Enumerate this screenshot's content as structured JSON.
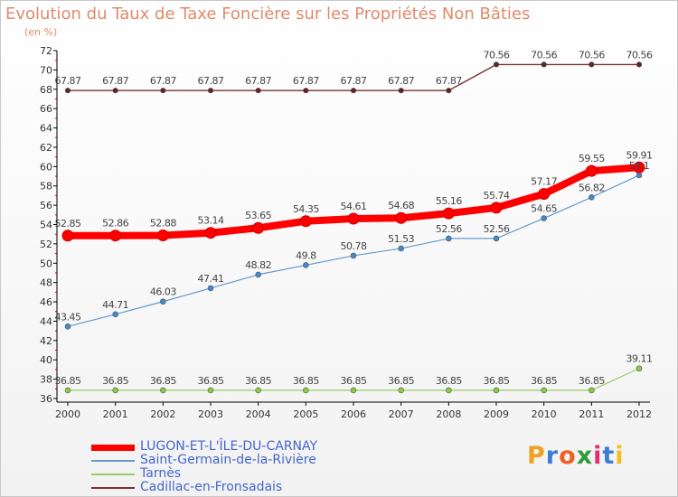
{
  "header": {
    "title": "Evolution du Taux de Taxe Foncière sur les Propriétés Non Bâties",
    "subtitle": "(en %)"
  },
  "brand": {
    "text": "Proxiti",
    "letter_colors": [
      "#f0a020",
      "#3a7dd8",
      "#f06020",
      "#2c9c3c",
      "#e03070",
      "#3a7dd8",
      "#f0c020"
    ]
  },
  "legend": {
    "items": [
      {
        "label": "LUGON-ET-L'ÎLE-DU-CARNAY",
        "color": "#ff0000"
      },
      {
        "label": "Saint-Germain-de-la-Rivière",
        "color": "#6699cc"
      },
      {
        "label": "Tarnès",
        "color": "#99cc66"
      },
      {
        "label": "Cadillac-en-Fronsadais",
        "color": "#773333"
      }
    ]
  },
  "chart_data": {
    "type": "line",
    "title": "Evolution du Taux de Taxe Foncière sur les Propriétés Non Bâties",
    "subtitle": "(en %)",
    "xlabel": "",
    "ylabel": "",
    "x": [
      "2000",
      "2001",
      "2002",
      "2003",
      "2004",
      "2005",
      "2006",
      "2007",
      "2008",
      "2009",
      "2010",
      "2011",
      "2012"
    ],
    "ylim": [
      36,
      72
    ],
    "ytick_step": 2,
    "grid": false,
    "legend_position": "bottom-left",
    "series": [
      {
        "name": "LUGON-ET-L'ÎLE-DU-CARNAY",
        "color": "#ff0000",
        "marker_color": "#ff0000",
        "values": [
          52.85,
          52.86,
          52.88,
          53.14,
          53.65,
          54.35,
          54.61,
          54.68,
          55.16,
          55.74,
          57.17,
          59.55,
          59.91
        ],
        "labels": [
          "52.85",
          "52.86",
          "52.88",
          "53.14",
          "53.65",
          "54.35",
          "54.61",
          "54.68",
          "55.16",
          "55.74",
          "57.17",
          "59.55",
          "59.91"
        ]
      },
      {
        "name": "Saint-Germain-de-la-Rivière",
        "color": "#6699cc",
        "marker_color": "#4488cc",
        "values": [
          43.45,
          44.71,
          46.03,
          47.41,
          48.82,
          49.8,
          50.78,
          51.53,
          52.56,
          52.56,
          54.65,
          56.82,
          59.1
        ],
        "labels": [
          "43.45",
          "44.71",
          "46.03",
          "47.41",
          "48.82",
          "49.8",
          "50.78",
          "51.53",
          "52.56",
          "52.56",
          "54.65",
          "56.82",
          "59.1"
        ]
      },
      {
        "name": "Tarnès",
        "color": "#99cc66",
        "marker_color": "#88cc44",
        "values": [
          36.85,
          36.85,
          36.85,
          36.85,
          36.85,
          36.85,
          36.85,
          36.85,
          36.85,
          36.85,
          36.85,
          36.85,
          39.11
        ],
        "labels": [
          "36.85",
          "36.85",
          "36.85",
          "36.85",
          "36.85",
          "36.85",
          "36.85",
          "36.85",
          "36.85",
          "36.85",
          "36.85",
          "36.85",
          "39.11"
        ]
      },
      {
        "name": "Cadillac-en-Fronsadais",
        "color": "#773333",
        "marker_color": "#662222",
        "values": [
          67.87,
          67.87,
          67.87,
          67.87,
          67.87,
          67.87,
          67.87,
          67.87,
          67.87,
          70.56,
          70.56,
          70.56,
          70.56
        ],
        "labels": [
          "67.87",
          "67.87",
          "67.87",
          "67.87",
          "67.87",
          "67.87",
          "67.87",
          "67.87",
          "67.87",
          "70.56",
          "70.56",
          "70.56",
          "70.56"
        ]
      }
    ]
  }
}
